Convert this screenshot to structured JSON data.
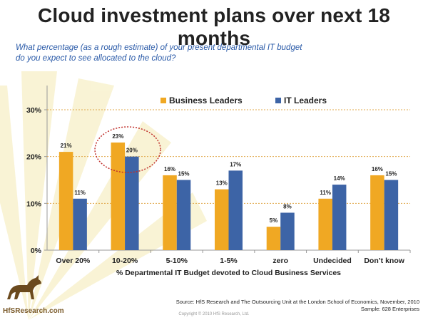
{
  "header": {
    "title": "Cloud investment plans over next 18 months",
    "subtitle_line1": "What percentage (as a rough estimate) of your present departmental IT budget",
    "subtitle_line2": "do you expect to see allocated to the cloud?"
  },
  "colors": {
    "business_leaders": "#f0a823",
    "it_leaders": "#3d64a6",
    "gridline": "#e0a84a",
    "highlight_ellipse": "#c0302c"
  },
  "chart_data": {
    "type": "bar",
    "categories": [
      "Over 20%",
      "10-20%",
      "5-10%",
      "1-5%",
      "zero",
      "Undecided",
      "Don’t know"
    ],
    "series": [
      {
        "name": "Business Leaders",
        "values": [
          21,
          23,
          16,
          13,
          5,
          11,
          16
        ],
        "labels": [
          "21%",
          "23%",
          "16%",
          "13%",
          "5%",
          "11%",
          "16%"
        ]
      },
      {
        "name": "IT Leaders",
        "values": [
          11,
          20,
          15,
          17,
          8,
          14,
          15
        ],
        "labels": [
          "11%",
          "20%",
          "15%",
          "17%",
          "8%",
          "14%",
          "15%"
        ]
      }
    ],
    "ylim": [
      0,
      30
    ],
    "yticks": [
      0,
      10,
      20,
      30
    ],
    "ytick_labels": [
      "0%",
      "10%",
      "20%",
      "30%"
    ],
    "xlabel": "% Departmental IT Budget devoted to Cloud Business Services",
    "ylabel": "",
    "legend_position": "top-center",
    "highlighted_category": "10-20%"
  },
  "footer": {
    "source": "Source:  HfS Research and  The Outsourcing Unit at the London School of Economics, November, 2010",
    "sample": "Sample:  628 Enterprises",
    "copyright": "Copyright © 2010 HfS Research, Ltd.",
    "logo_text": "HfSResearch.com"
  }
}
